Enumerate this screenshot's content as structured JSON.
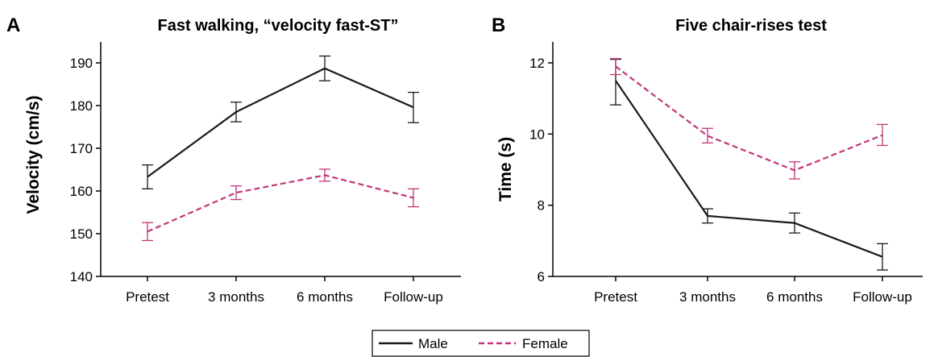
{
  "colors": {
    "male": "#1a1a1a",
    "female": "#c2357a",
    "axis": "#000000"
  },
  "legend": {
    "male_label": "Male",
    "female_label": "Female",
    "male_style": "solid",
    "female_style": "dashed"
  },
  "chart_data": [
    {
      "type": "line",
      "panel_letter": "A",
      "title": "Fast walking, “velocity fast-ST”",
      "xlabel": "",
      "ylabel": "Velocity (cm/s)",
      "categories": [
        "Pretest",
        "3 months",
        "6 months",
        "Follow-up"
      ],
      "ylim": [
        140,
        190
      ],
      "yticks": [
        140,
        150,
        160,
        170,
        180,
        190
      ],
      "series": [
        {
          "name": "Male",
          "values": [
            163.3,
            178.5,
            188.7,
            179.6
          ],
          "error_low": [
            160.5,
            176.2,
            185.8,
            176.0
          ],
          "error_high": [
            166.1,
            180.8,
            191.6,
            183.1
          ]
        },
        {
          "name": "Female",
          "values": [
            150.5,
            159.6,
            163.7,
            158.4
          ],
          "error_low": [
            148.4,
            158.0,
            162.3,
            156.3
          ],
          "error_high": [
            152.6,
            161.2,
            165.1,
            160.5
          ]
        }
      ]
    },
    {
      "type": "line",
      "panel_letter": "B",
      "title": "Five chair-rises test",
      "xlabel": "",
      "ylabel": "Time (s)",
      "categories": [
        "Pretest",
        "3 months",
        "6 months",
        "Follow-up"
      ],
      "ylim": [
        6,
        12
      ],
      "yticks": [
        6,
        8,
        10,
        12
      ],
      "ytick_labels": [
        "6",
        "8",
        "10",
        "12"
      ],
      "series": [
        {
          "name": "Male",
          "values": [
            11.5,
            7.7,
            7.5,
            6.55
          ],
          "error_low": [
            10.82,
            7.5,
            7.22,
            6.18
          ],
          "error_high": [
            12.1,
            7.9,
            7.78,
            6.92
          ]
        },
        {
          "name": "Female",
          "values": [
            11.9,
            9.95,
            8.98,
            9.97
          ],
          "error_low": [
            11.67,
            9.75,
            8.74,
            9.68
          ],
          "error_high": [
            12.12,
            10.16,
            9.22,
            10.27
          ]
        }
      ]
    }
  ]
}
